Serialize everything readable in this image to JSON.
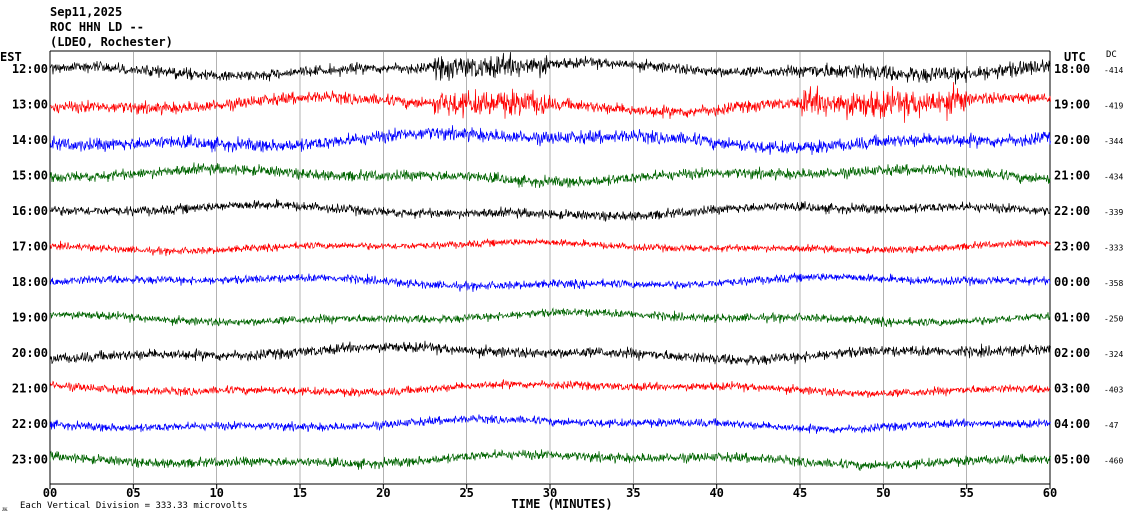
{
  "header": {
    "date": "Sep11,2025",
    "station": "ROC HHN LD --",
    "network": "(LDEO, Rochester)"
  },
  "axis_titles": {
    "left_tz": "EST",
    "right_tz": "UTC",
    "dc": "DC",
    "xlabel": "TIME (MINUTES)"
  },
  "footer": {
    "scale_note": "Each Vertical Division =  333.33 microvolts"
  },
  "colors": {
    "black": "#000000",
    "red": "#ff0000",
    "blue": "#0000ff",
    "green": "#006400",
    "grid": "#808080"
  },
  "chart_data": {
    "type": "line",
    "title": "",
    "xlabel": "TIME (MINUTES)",
    "ylabel": "",
    "x_ticks": [
      "00",
      "05",
      "10",
      "15",
      "20",
      "25",
      "30",
      "35",
      "40",
      "45",
      "50",
      "55",
      "60"
    ],
    "xlim": [
      0,
      60
    ],
    "grid": true,
    "rows": [
      {
        "est": "12:00",
        "utc": "18:00",
        "dc": "-414",
        "color": "black"
      },
      {
        "est": "13:00",
        "utc": "19:00",
        "dc": "-419",
        "color": "red"
      },
      {
        "est": "14:00",
        "utc": "20:00",
        "dc": "-344",
        "color": "blue"
      },
      {
        "est": "15:00",
        "utc": "21:00",
        "dc": "-434",
        "color": "green"
      },
      {
        "est": "16:00",
        "utc": "22:00",
        "dc": "-339",
        "color": "black"
      },
      {
        "est": "17:00",
        "utc": "23:00",
        "dc": "-333",
        "color": "red"
      },
      {
        "est": "18:00",
        "utc": "00:00",
        "dc": "-358",
        "color": "blue"
      },
      {
        "est": "19:00",
        "utc": "01:00",
        "dc": "-250",
        "color": "green"
      },
      {
        "est": "20:00",
        "utc": "02:00",
        "dc": "-324",
        "color": "black"
      },
      {
        "est": "21:00",
        "utc": "03:00",
        "dc": "-403",
        "color": "red"
      },
      {
        "est": "22:00",
        "utc": "04:00",
        "dc": "-47",
        "color": "blue"
      },
      {
        "est": "23:00",
        "utc": "05:00",
        "dc": "-460",
        "color": "green"
      }
    ]
  }
}
